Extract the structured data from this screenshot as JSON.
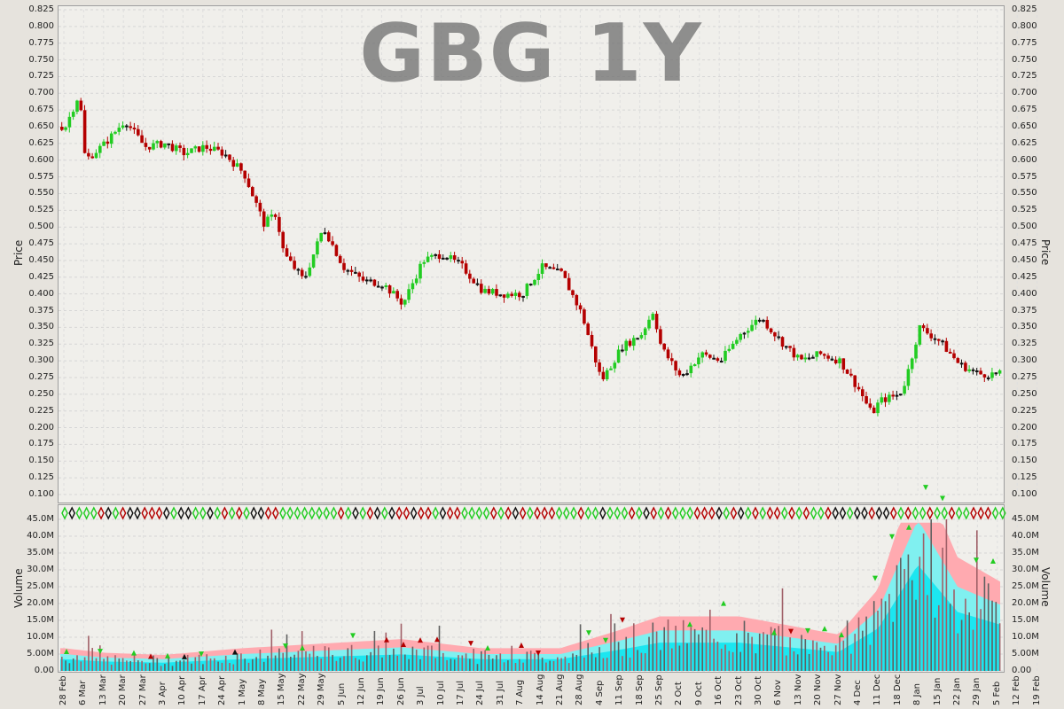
{
  "chart_data": [
    {
      "type": "candlestick",
      "title": "GBG 1Y",
      "ylabel": "Price",
      "ylim": [
        0.1,
        0.825
      ],
      "grid": true,
      "y_ticks": [
        "0.100",
        "0.125",
        "0.150",
        "0.175",
        "0.200",
        "0.225",
        "0.250",
        "0.275",
        "0.300",
        "0.325",
        "0.350",
        "0.375",
        "0.400",
        "0.425",
        "0.450",
        "0.475",
        "0.500",
        "0.525",
        "0.550",
        "0.575",
        "0.600",
        "0.625",
        "0.650",
        "0.675",
        "0.700",
        "0.725",
        "0.750",
        "0.775",
        "0.800",
        "0.825"
      ],
      "x_ticks": [
        "28 Feb",
        "6 Mar",
        "13 Mar",
        "20 Mar",
        "27 Mar",
        "3 Apr",
        "10 Apr",
        "17 Apr",
        "24 Apr",
        "1 May",
        "8 May",
        "15 May",
        "22 May",
        "29 May",
        "5 Jun",
        "12 Jun",
        "19 Jun",
        "26 Jun",
        "3 Jul",
        "10 Jul",
        "17 Jul",
        "24 Jul",
        "31 Jul",
        "7 Aug",
        "14 Aug",
        "21 Aug",
        "28 Aug",
        "4 Sep",
        "11 Sep",
        "18 Sep",
        "25 Sep",
        "2 Oct",
        "9 Oct",
        "16 Oct",
        "23 Oct",
        "30 Oct",
        "6 Nov",
        "13 Nov",
        "20 Nov",
        "27 Nov",
        "4 Dec",
        "11 Dec",
        "18 Dec",
        "8 Jan",
        "15 Jan",
        "22 Jan",
        "29 Jan",
        "5 Feb",
        "12 Feb",
        "19 Feb"
      ],
      "close_keypoints": [
        {
          "x": "28 Feb",
          "y": 0.65
        },
        {
          "x": "3 Mar",
          "y": 0.7
        },
        {
          "x": "6 Mar",
          "y": 0.6
        },
        {
          "x": "13 Mar",
          "y": 0.625
        },
        {
          "x": "20 Mar",
          "y": 0.66
        },
        {
          "x": "27 Mar",
          "y": 0.62
        },
        {
          "x": "3 Apr",
          "y": 0.625
        },
        {
          "x": "10 Apr",
          "y": 0.61
        },
        {
          "x": "17 Apr",
          "y": 0.62
        },
        {
          "x": "24 Apr",
          "y": 0.61
        },
        {
          "x": "1 May",
          "y": 0.58
        },
        {
          "x": "8 May",
          "y": 0.505
        },
        {
          "x": "12 May",
          "y": 0.52
        },
        {
          "x": "15 May",
          "y": 0.46
        },
        {
          "x": "22 May",
          "y": 0.42
        },
        {
          "x": "29 May",
          "y": 0.5
        },
        {
          "x": "5 Jun",
          "y": 0.44
        },
        {
          "x": "12 Jun",
          "y": 0.42
        },
        {
          "x": "19 Jun",
          "y": 0.415
        },
        {
          "x": "26 Jun",
          "y": 0.385
        },
        {
          "x": "3 Jul",
          "y": 0.45
        },
        {
          "x": "10 Jul",
          "y": 0.46
        },
        {
          "x": "17 Jul",
          "y": 0.44
        },
        {
          "x": "24 Jul",
          "y": 0.405
        },
        {
          "x": "31 Jul",
          "y": 0.4
        },
        {
          "x": "7 Aug",
          "y": 0.4
        },
        {
          "x": "14 Aug",
          "y": 0.44
        },
        {
          "x": "21 Aug",
          "y": 0.43
        },
        {
          "x": "28 Aug",
          "y": 0.37
        },
        {
          "x": "4 Sep",
          "y": 0.27
        },
        {
          "x": "11 Sep",
          "y": 0.32
        },
        {
          "x": "18 Sep",
          "y": 0.34
        },
        {
          "x": "22 Sep",
          "y": 0.375
        },
        {
          "x": "25 Sep",
          "y": 0.32
        },
        {
          "x": "2 Oct",
          "y": 0.275
        },
        {
          "x": "9 Oct",
          "y": 0.31
        },
        {
          "x": "16 Oct",
          "y": 0.3
        },
        {
          "x": "23 Oct",
          "y": 0.34
        },
        {
          "x": "30 Oct",
          "y": 0.365
        },
        {
          "x": "6 Nov",
          "y": 0.33
        },
        {
          "x": "13 Nov",
          "y": 0.3
        },
        {
          "x": "20 Nov",
          "y": 0.31
        },
        {
          "x": "27 Nov",
          "y": 0.3
        },
        {
          "x": "4 Dec",
          "y": 0.255
        },
        {
          "x": "8 Dec",
          "y": 0.22
        },
        {
          "x": "11 Dec",
          "y": 0.24
        },
        {
          "x": "18 Dec",
          "y": 0.25
        },
        {
          "x": "25 Dec",
          "y": 0.27
        },
        {
          "x": "8 Jan",
          "y": 0.35
        },
        {
          "x": "15 Jan",
          "y": 0.33
        },
        {
          "x": "22 Jan",
          "y": 0.295
        },
        {
          "x": "29 Jan",
          "y": 0.28
        },
        {
          "x": "5 Feb",
          "y": 0.28
        },
        {
          "x": "12 Feb",
          "y": 0.275
        },
        {
          "x": "19 Feb",
          "y": 0.265
        },
        {
          "x": "23 Feb",
          "y": 0.255
        }
      ]
    },
    {
      "type": "bar",
      "ylabel": "Volume",
      "ylim": [
        0,
        45000000
      ],
      "grid": true,
      "y_ticks": [
        "0.00",
        "5.00M",
        "10.0M",
        "15.0M",
        "20.0M",
        "25.0M",
        "30.0M",
        "35.0M",
        "40.0M",
        "45.0M"
      ],
      "volume_keypoints": [
        {
          "x": "28 Feb",
          "y": 5000000
        },
        {
          "x": "13 Mar",
          "y": 4000000
        },
        {
          "x": "3 Apr",
          "y": 3500000
        },
        {
          "x": "1 May",
          "y": 5000000
        },
        {
          "x": "29 May",
          "y": 6000000
        },
        {
          "x": "26 Jun",
          "y": 7000000
        },
        {
          "x": "24 Jul",
          "y": 5000000
        },
        {
          "x": "21 Aug",
          "y": 5000000
        },
        {
          "x": "11 Sep",
          "y": 9000000
        },
        {
          "x": "25 Sep",
          "y": 12000000
        },
        {
          "x": "23 Oct",
          "y": 12000000
        },
        {
          "x": "27 Nov",
          "y": 8000000
        },
        {
          "x": "11 Dec",
          "y": 18000000
        },
        {
          "x": "8 Jan",
          "y": 45000000
        },
        {
          "x": "22 Jan",
          "y": 25000000
        },
        {
          "x": "19 Feb",
          "y": 15000000
        }
      ]
    }
  ],
  "colors": {
    "up": "#22cc22",
    "down": "#b40000",
    "flat": "#111111",
    "band_outer": "#ffaab0",
    "band_mid": "#80f0f0",
    "band_inner": "#1ce6f0",
    "volume_bar": "#a06068"
  }
}
